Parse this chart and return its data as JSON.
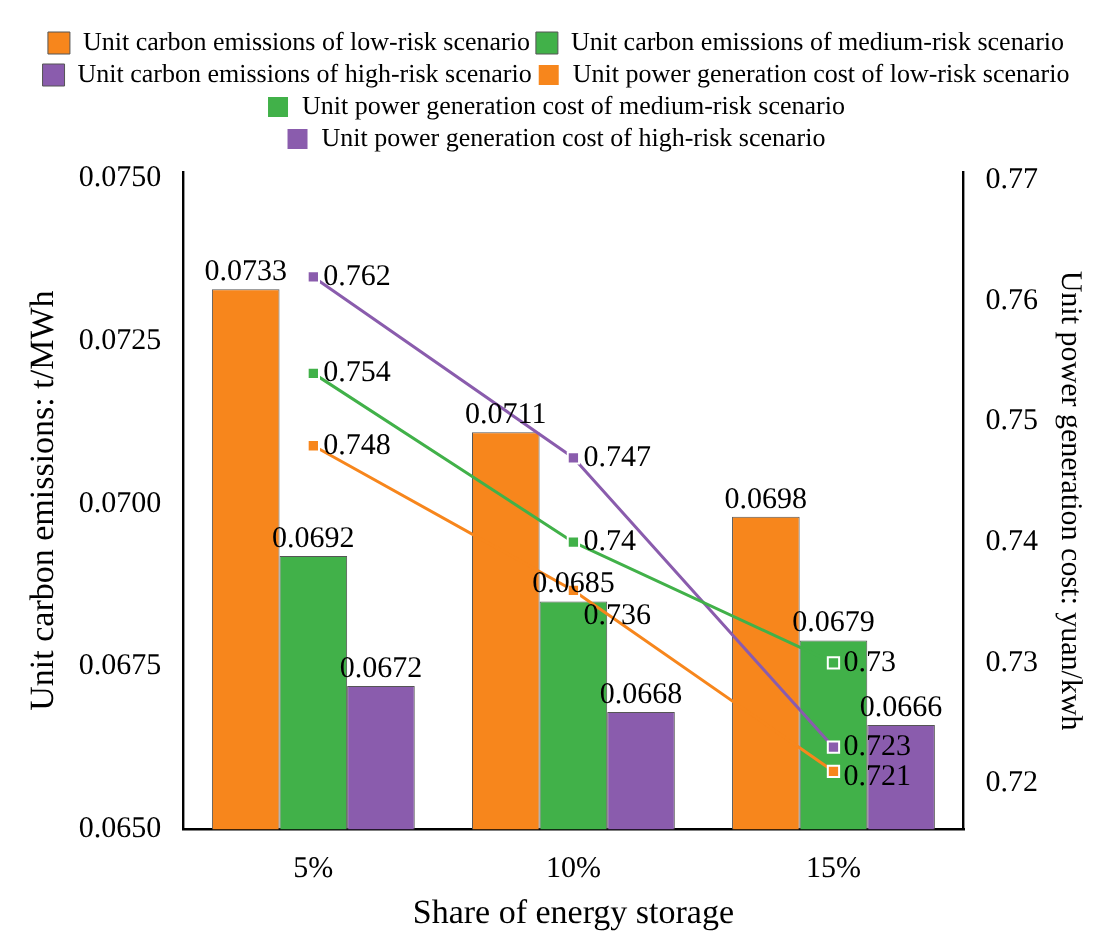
{
  "chart_data": {
    "type": "bar",
    "xlabel": "Share of energy storage",
    "ylabel": "Unit carbon emissions: t/MWh",
    "y2label": "Unit power generation cost: yuan/kwh",
    "categories": [
      "5%",
      "10%",
      "15%"
    ],
    "series": [
      {
        "name": "Unit carbon emissions of low-risk scenario",
        "color": "#f7861c",
        "values": [
          0.0733,
          0.0711,
          0.0698
        ]
      },
      {
        "name": "Unit carbon emissions of medium-risk scenario",
        "color": "#41b149",
        "values": [
          0.0692,
          0.0685,
          0.0679
        ]
      },
      {
        "name": "Unit carbon emissions of high-risk scenario",
        "color": "#8a5cad",
        "values": [
          0.0672,
          0.0668,
          0.0666
        ]
      },
      {
        "name": "Unit power generation cost of low-risk scenario",
        "type": "line",
        "axis": "y2",
        "color": "#f7861c",
        "values": [
          0.748,
          0.736,
          0.721
        ]
      },
      {
        "name": "Unit power generation cost of medium-risk scenario",
        "type": "line",
        "axis": "y2",
        "color": "#41b149",
        "values": [
          0.754,
          0.74,
          0.73
        ]
      },
      {
        "name": "Unit power generation cost of high-risk scenario",
        "type": "line",
        "axis": "y2",
        "color": "#8a5cad",
        "values": [
          0.762,
          0.747,
          0.723
        ]
      }
    ],
    "ylim": [
      0.065,
      0.0751
    ],
    "yticks": [
      {
        "value": 0.065,
        "label": "0.0650"
      },
      0.0675,
      {
        "value": 0.07,
        "label": "0.0700"
      },
      0.0725,
      {
        "value": 0.075,
        "label": "0.0750"
      }
    ],
    "y2lim": [
      0.7162,
      0.7707
    ],
    "y2ticks": [
      0.72,
      0.73,
      0.74,
      0.75,
      0.76,
      0.77
    ],
    "data_labels": true,
    "grid": false,
    "legend": "top",
    "marker": "square",
    "line_style": "solid"
  }
}
